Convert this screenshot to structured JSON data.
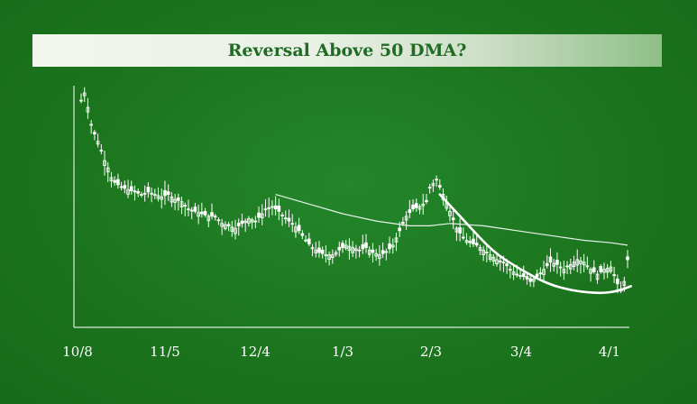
{
  "chart_data": {
    "type": "candlestick",
    "title": "Reversal Above 50 DMA?",
    "xlabel": "",
    "ylabel": "",
    "x_tick_labels": [
      "10/8",
      "11/5",
      "12/4",
      "1/3",
      "2/3",
      "3/4",
      "4/1"
    ],
    "y_range": [
      0,
      100
    ],
    "grid": false,
    "legend": "none",
    "price_path": [
      [
        0,
        94
      ],
      [
        1,
        97
      ],
      [
        2,
        91
      ],
      [
        3,
        84
      ],
      [
        4,
        80
      ],
      [
        5,
        77
      ],
      [
        6,
        73
      ],
      [
        7,
        69
      ],
      [
        8,
        66
      ],
      [
        9,
        62
      ],
      [
        10,
        60
      ],
      [
        12,
        58
      ],
      [
        14,
        57
      ],
      [
        16,
        56
      ],
      [
        18,
        55
      ],
      [
        20,
        56
      ],
      [
        22,
        55
      ],
      [
        24,
        54
      ],
      [
        26,
        55
      ],
      [
        28,
        53
      ],
      [
        30,
        52
      ],
      [
        32,
        49
      ],
      [
        34,
        48
      ],
      [
        36,
        47
      ],
      [
        38,
        46
      ],
      [
        40,
        46
      ],
      [
        42,
        43
      ],
      [
        44,
        42
      ],
      [
        46,
        41
      ],
      [
        48,
        43
      ],
      [
        50,
        45
      ],
      [
        52,
        44
      ],
      [
        54,
        47
      ],
      [
        55,
        49
      ],
      [
        57,
        50
      ],
      [
        59,
        48
      ],
      [
        61,
        45
      ],
      [
        63,
        43
      ],
      [
        65,
        40
      ],
      [
        67,
        36
      ],
      [
        69,
        33
      ],
      [
        71,
        31
      ],
      [
        73,
        30
      ],
      [
        75,
        30
      ],
      [
        77,
        32
      ],
      [
        79,
        34
      ],
      [
        81,
        33
      ],
      [
        83,
        32
      ],
      [
        85,
        33
      ],
      [
        87,
        31
      ],
      [
        89,
        30
      ],
      [
        91,
        31
      ],
      [
        93,
        34
      ],
      [
        95,
        40
      ],
      [
        97,
        46
      ],
      [
        99,
        49
      ],
      [
        101,
        50
      ],
      [
        103,
        52
      ],
      [
        104,
        58
      ],
      [
        106,
        61
      ],
      [
        108,
        55
      ],
      [
        110,
        48
      ],
      [
        112,
        41
      ],
      [
        114,
        37
      ],
      [
        116,
        35
      ],
      [
        118,
        34
      ],
      [
        120,
        32
      ],
      [
        122,
        30
      ],
      [
        124,
        28
      ],
      [
        126,
        27
      ],
      [
        128,
        24
      ],
      [
        130,
        22
      ],
      [
        132,
        21
      ],
      [
        134,
        19
      ],
      [
        136,
        21
      ],
      [
        138,
        24
      ],
      [
        140,
        27
      ],
      [
        142,
        26
      ],
      [
        144,
        24
      ],
      [
        146,
        26
      ],
      [
        148,
        28
      ],
      [
        150,
        27
      ],
      [
        152,
        24
      ],
      [
        154,
        22
      ],
      [
        156,
        24
      ],
      [
        158,
        25
      ],
      [
        160,
        18
      ],
      [
        161,
        15
      ],
      [
        162,
        19
      ],
      [
        163,
        28
      ]
    ],
    "moving_average_50d": [
      [
        58,
        55
      ],
      [
        68,
        51
      ],
      [
        78,
        47
      ],
      [
        88,
        44
      ],
      [
        98,
        42
      ],
      [
        104,
        42
      ],
      [
        110,
        43
      ],
      [
        120,
        42
      ],
      [
        130,
        40
      ],
      [
        140,
        38
      ],
      [
        150,
        36
      ],
      [
        158,
        35
      ],
      [
        163,
        34
      ]
    ],
    "annotation_curve": [
      [
        107,
        55
      ],
      [
        115,
        43
      ],
      [
        123,
        31
      ],
      [
        131,
        24
      ],
      [
        139,
        18
      ],
      [
        147,
        15
      ],
      [
        155,
        14
      ],
      [
        160,
        15
      ],
      [
        164,
        17
      ]
    ],
    "colors": {
      "background": "#1e7a1e",
      "marks": "#ffffff",
      "title_bar": "#eef3ea",
      "title_text": "#1f6b24"
    }
  }
}
